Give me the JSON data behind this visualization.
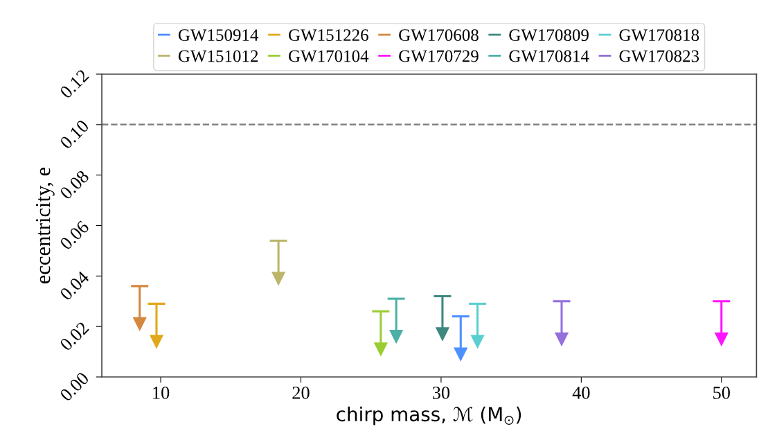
{
  "chart_data": {
    "type": "scatter",
    "xlabel": "chirp mass, ℳ (M$_{⊙}$)",
    "ylabel": "eccentricity, e",
    "xlim": [
      5.8,
      52.5
    ],
    "xticks": [
      10,
      20,
      30,
      40,
      50
    ],
    "ylim": [
      0,
      0.12
    ],
    "yticks": [
      {
        "value": 0,
        "label": "0.00"
      },
      {
        "value": 0.02,
        "label": "0.02"
      },
      {
        "value": 0.04,
        "label": "0.04"
      },
      {
        "value": 0.06,
        "label": "0.06"
      },
      {
        "value": 0.08,
        "label": "0.08"
      },
      {
        "value": 0.1,
        "label": "0.10"
      },
      {
        "value": 0.12,
        "label": "0.12"
      }
    ],
    "legend": "top",
    "grid": false,
    "marker": "triangle",
    "ref_lines": [
      {
        "axis": "y",
        "value": 0.1,
        "color": "#808080",
        "line_style": "dashed"
      }
    ],
    "series": [
      {
        "name": "GW150914",
        "color": "#4c8fff",
        "x": [
          31.4
        ],
        "values": [
          0.009
        ],
        "errors": [
          [
            0.009,
            0.024
          ]
        ]
      },
      {
        "name": "GW151012",
        "color": "#bcb56a",
        "x": [
          18.4
        ],
        "values": [
          0.039
        ],
        "errors": [
          [
            0.039,
            0.054
          ]
        ]
      },
      {
        "name": "GW151226",
        "color": "#e0a91c",
        "x": [
          9.7
        ],
        "values": [
          0.014
        ],
        "errors": [
          [
            0.014,
            0.029
          ]
        ]
      },
      {
        "name": "GW170104",
        "color": "#9acd32",
        "x": [
          25.7
        ],
        "values": [
          0.011
        ],
        "errors": [
          [
            0.011,
            0.026
          ]
        ]
      },
      {
        "name": "GW170608",
        "color": "#d4873e",
        "x": [
          8.5
        ],
        "values": [
          0.021
        ],
        "errors": [
          [
            0.021,
            0.036
          ]
        ]
      },
      {
        "name": "GW170729",
        "color": "#ff14ff",
        "x": [
          50.0
        ],
        "values": [
          0.015
        ],
        "errors": [
          [
            0.015,
            0.03
          ]
        ]
      },
      {
        "name": "GW170809",
        "color": "#3d8880",
        "x": [
          30.1
        ],
        "values": [
          0.017
        ],
        "errors": [
          [
            0.017,
            0.032
          ]
        ]
      },
      {
        "name": "GW170814",
        "color": "#4cb0a6",
        "x": [
          26.8
        ],
        "values": [
          0.016
        ],
        "errors": [
          [
            0.016,
            0.031
          ]
        ]
      },
      {
        "name": "GW170818",
        "color": "#5bcfcf",
        "x": [
          32.6
        ],
        "values": [
          0.014
        ],
        "errors": [
          [
            0.014,
            0.029
          ]
        ]
      },
      {
        "name": "GW170823",
        "color": "#9370db",
        "x": [
          38.6
        ],
        "values": [
          0.015
        ],
        "errors": [
          [
            0.015,
            0.03
          ]
        ]
      }
    ]
  }
}
